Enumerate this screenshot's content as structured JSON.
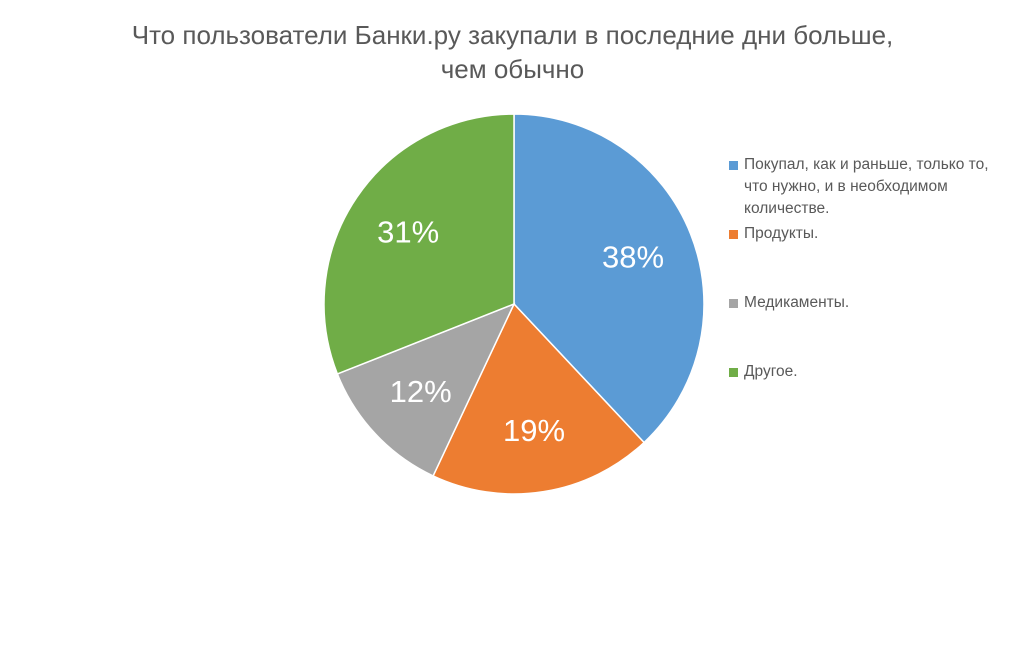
{
  "chart_data": {
    "type": "pie",
    "title": "Что пользователи Банки.ру закупали в последние дни больше, чем обычно",
    "title_lines": [
      "Что пользователи Банки.ру закупали в последние дни больше,",
      "чем обычно"
    ],
    "categories": [
      "Покупал, как и раньше, только то, что нужно, и в необходимом количестве.",
      "Продукты.",
      "Медикаменты.",
      "Другое."
    ],
    "legend_lines": [
      [
        "Покупал, как и раньше, только то,",
        "что нужно, и в необходимом",
        "количестве."
      ],
      [
        "Продукты."
      ],
      [
        "Медикаменты."
      ],
      [
        "Другое."
      ]
    ],
    "values": [
      38,
      19,
      12,
      31
    ],
    "labels": [
      "38%",
      "19%",
      "12%",
      "31%"
    ],
    "colors": [
      "#5B9BD5",
      "#ED7D31",
      "#A5A5A5",
      "#70AD47"
    ],
    "legend_position": "right"
  }
}
